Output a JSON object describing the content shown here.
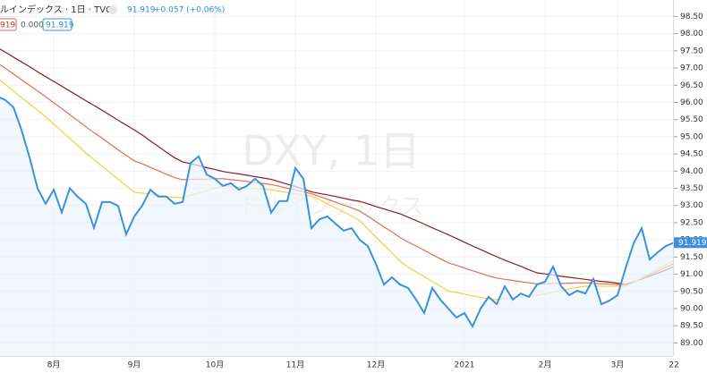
{
  "chart_data": {
    "type": "line",
    "header": {
      "symbol": "ルインデックス · 1日 · TVC",
      "last": "91.919",
      "change": "+0.057 (+0.06%)",
      "indicators": [
        "919",
        "0.000",
        "91.919"
      ]
    },
    "watermark": {
      "title": "DXY, 1日",
      "subtitle": "ドルインデックス"
    },
    "categories": [
      null,
      null,
      null,
      null,
      null,
      null,
      null,
      "8月",
      null,
      null,
      null,
      null,
      null,
      null,
      null,
      null,
      null,
      "9月",
      null,
      null,
      null,
      null,
      null,
      null,
      null,
      null,
      null,
      "10月",
      null,
      null,
      null,
      null,
      null,
      null,
      null,
      null,
      null,
      "11月",
      null,
      null,
      null,
      null,
      null,
      null,
      null,
      null,
      null,
      "12月",
      null,
      null,
      null,
      null,
      null,
      null,
      null,
      null,
      null,
      null,
      "2021",
      null,
      null,
      null,
      null,
      null,
      null,
      null,
      null,
      null,
      "2月",
      null,
      null,
      null,
      null,
      null,
      null,
      null,
      null,
      "3月",
      null,
      null,
      null,
      null,
      null,
      null,
      "22"
    ],
    "series": [
      {
        "color": "#8b1e1e",
        "values": [
          97.6,
          97.46,
          97.32,
          97.18,
          97.04,
          96.89,
          96.75,
          96.61,
          96.47,
          96.33,
          96.19,
          96.05,
          95.91,
          95.77,
          95.63,
          95.48,
          95.34,
          95.2,
          95.05,
          94.88,
          94.72,
          94.55,
          94.39,
          94.27,
          94.22,
          94.16,
          94.1,
          94.05,
          93.99,
          93.95,
          93.92,
          93.88,
          93.84,
          93.8,
          93.76,
          93.69,
          93.62,
          93.55,
          93.48,
          93.4,
          93.35,
          93.31,
          93.26,
          93.21,
          93.16,
          93.12,
          93.05,
          92.97,
          92.9,
          92.83,
          92.76,
          92.66,
          92.56,
          92.46,
          92.35,
          92.25,
          92.15,
          92.04,
          91.93,
          91.82,
          91.72,
          91.61,
          91.51,
          91.41,
          91.32,
          91.23,
          91.13,
          91.04,
          91.01,
          90.98,
          90.94,
          90.91,
          90.88,
          90.85,
          90.82,
          90.79,
          90.77,
          90.74,
          90.71,
          90.78,
          90.86,
          90.95,
          91.03,
          91.12,
          91.22
        ]
      },
      {
        "color": "#ec6a50",
        "values": [
          97.15,
          96.99,
          96.83,
          96.66,
          96.5,
          96.33,
          96.17,
          95.99,
          95.82,
          95.64,
          95.47,
          95.29,
          95.12,
          94.96,
          94.79,
          94.62,
          94.46,
          94.3,
          94.21,
          94.11,
          94.01,
          93.91,
          93.81,
          93.75,
          93.76,
          93.76,
          93.77,
          93.78,
          93.78,
          93.75,
          93.73,
          93.7,
          93.67,
          93.64,
          93.61,
          93.56,
          93.5,
          93.45,
          93.4,
          93.34,
          93.26,
          93.18,
          93.1,
          93.01,
          92.93,
          92.84,
          92.69,
          92.53,
          92.38,
          92.23,
          92.07,
          91.94,
          91.82,
          91.7,
          91.57,
          91.45,
          91.33,
          91.26,
          91.18,
          91.1,
          91.03,
          90.95,
          90.89,
          90.85,
          90.82,
          90.78,
          90.75,
          90.72,
          90.72,
          90.73,
          90.73,
          90.74,
          90.75,
          90.75,
          90.74,
          90.72,
          90.71,
          90.7,
          90.68,
          90.77,
          90.88,
          90.99,
          91.09,
          91.2,
          91.31
        ]
      },
      {
        "color": "#f2d23c",
        "values": [
          96.7,
          96.52,
          96.33,
          96.14,
          95.96,
          95.77,
          95.58,
          95.37,
          95.16,
          94.95,
          94.74,
          94.53,
          94.33,
          94.14,
          93.95,
          93.76,
          93.58,
          93.39,
          93.36,
          93.33,
          93.29,
          93.26,
          93.23,
          93.23,
          93.3,
          93.36,
          93.43,
          93.5,
          93.56,
          93.55,
          93.53,
          93.51,
          93.49,
          93.48,
          93.45,
          93.42,
          93.38,
          93.34,
          93.31,
          93.27,
          93.17,
          93.05,
          92.93,
          92.81,
          92.69,
          92.55,
          92.32,
          92.08,
          91.85,
          91.62,
          91.38,
          91.21,
          91.07,
          90.93,
          90.79,
          90.65,
          90.51,
          90.47,
          90.42,
          90.37,
          90.33,
          90.28,
          90.26,
          90.29,
          90.31,
          90.33,
          90.36,
          90.39,
          90.43,
          90.48,
          90.52,
          90.57,
          90.62,
          90.65,
          90.65,
          90.65,
          90.65,
          90.65,
          90.65,
          90.76,
          90.89,
          91.02,
          91.15,
          91.28,
          91.4
        ]
      },
      {
        "color": "#3d8fe0",
        "values": [
          96.17,
          96.07,
          95.86,
          95.2,
          94.4,
          93.5,
          93.05,
          93.46,
          92.8,
          93.5,
          93.25,
          93.05,
          92.35,
          93.1,
          93.1,
          92.99,
          92.16,
          92.68,
          93.0,
          93.46,
          93.26,
          93.26,
          93.05,
          93.1,
          94.24,
          94.43,
          93.9,
          93.78,
          93.57,
          93.65,
          93.46,
          93.57,
          93.78,
          93.57,
          92.79,
          93.13,
          93.13,
          94.09,
          93.78,
          92.34,
          92.6,
          92.68,
          92.47,
          92.27,
          92.34,
          92.0,
          91.82,
          91.3,
          90.7,
          90.91,
          90.7,
          90.6,
          90.26,
          89.87,
          90.6,
          90.26,
          90.0,
          89.74,
          89.87,
          89.48,
          90.0,
          90.34,
          90.13,
          90.65,
          90.26,
          90.44,
          90.34,
          90.7,
          90.78,
          91.22,
          90.65,
          90.39,
          90.52,
          90.44,
          90.86,
          90.13,
          90.23,
          90.39,
          91.17,
          91.9,
          92.34,
          91.43,
          91.64,
          91.82,
          91.919
        ],
        "value_labels": [
          null,
          null,
          null,
          null,
          null,
          null,
          null,
          null,
          null,
          null,
          null,
          null,
          null,
          null,
          null,
          null,
          null,
          null,
          null,
          null,
          null,
          null,
          null,
          null,
          null,
          null,
          null,
          null,
          null,
          null,
          null,
          null,
          null,
          null,
          null,
          null,
          null,
          null,
          null,
          null,
          null,
          null,
          null,
          null,
          null,
          null,
          null,
          null,
          null,
          null,
          null,
          null,
          null,
          null,
          null,
          null,
          null,
          null,
          null,
          null,
          null,
          null,
          null,
          null,
          null,
          null,
          null,
          null,
          null,
          null,
          null,
          null,
          null,
          null,
          null,
          null,
          null,
          null,
          null,
          null,
          null,
          null,
          null,
          null,
          "91.919"
        ]
      }
    ],
    "ylim": [
      88.62,
      98.98
    ],
    "yticks": [
      {
        "value": 89,
        "label": "89.00"
      },
      {
        "value": 89.5,
        "label": "89.50"
      },
      {
        "value": 90,
        "label": "90.00"
      },
      {
        "value": 90.5,
        "label": "90.50"
      },
      {
        "value": 91,
        "label": "91.00"
      },
      {
        "value": 91.5,
        "label": "91.50"
      },
      {
        "value": 92,
        "label": "92.00"
      },
      {
        "value": 92.5,
        "label": "92.50"
      },
      {
        "value": 93,
        "label": "93.00"
      },
      {
        "value": 93.5,
        "label": "93.50"
      },
      {
        "value": 94,
        "label": "94.00"
      },
      {
        "value": 94.5,
        "label": "94.50"
      },
      {
        "value": 95,
        "label": "95.00"
      },
      {
        "value": 95.5,
        "label": "95.50"
      },
      {
        "value": 96,
        "label": "96.00"
      },
      {
        "value": 96.5,
        "label": "96.50"
      },
      {
        "value": 97,
        "label": "97.00"
      },
      {
        "value": 97.5,
        "label": "97.50"
      },
      {
        "value": 98,
        "label": "98.00"
      },
      {
        "value": 98.5,
        "label": "98.50"
      }
    ],
    "grid": true
  }
}
